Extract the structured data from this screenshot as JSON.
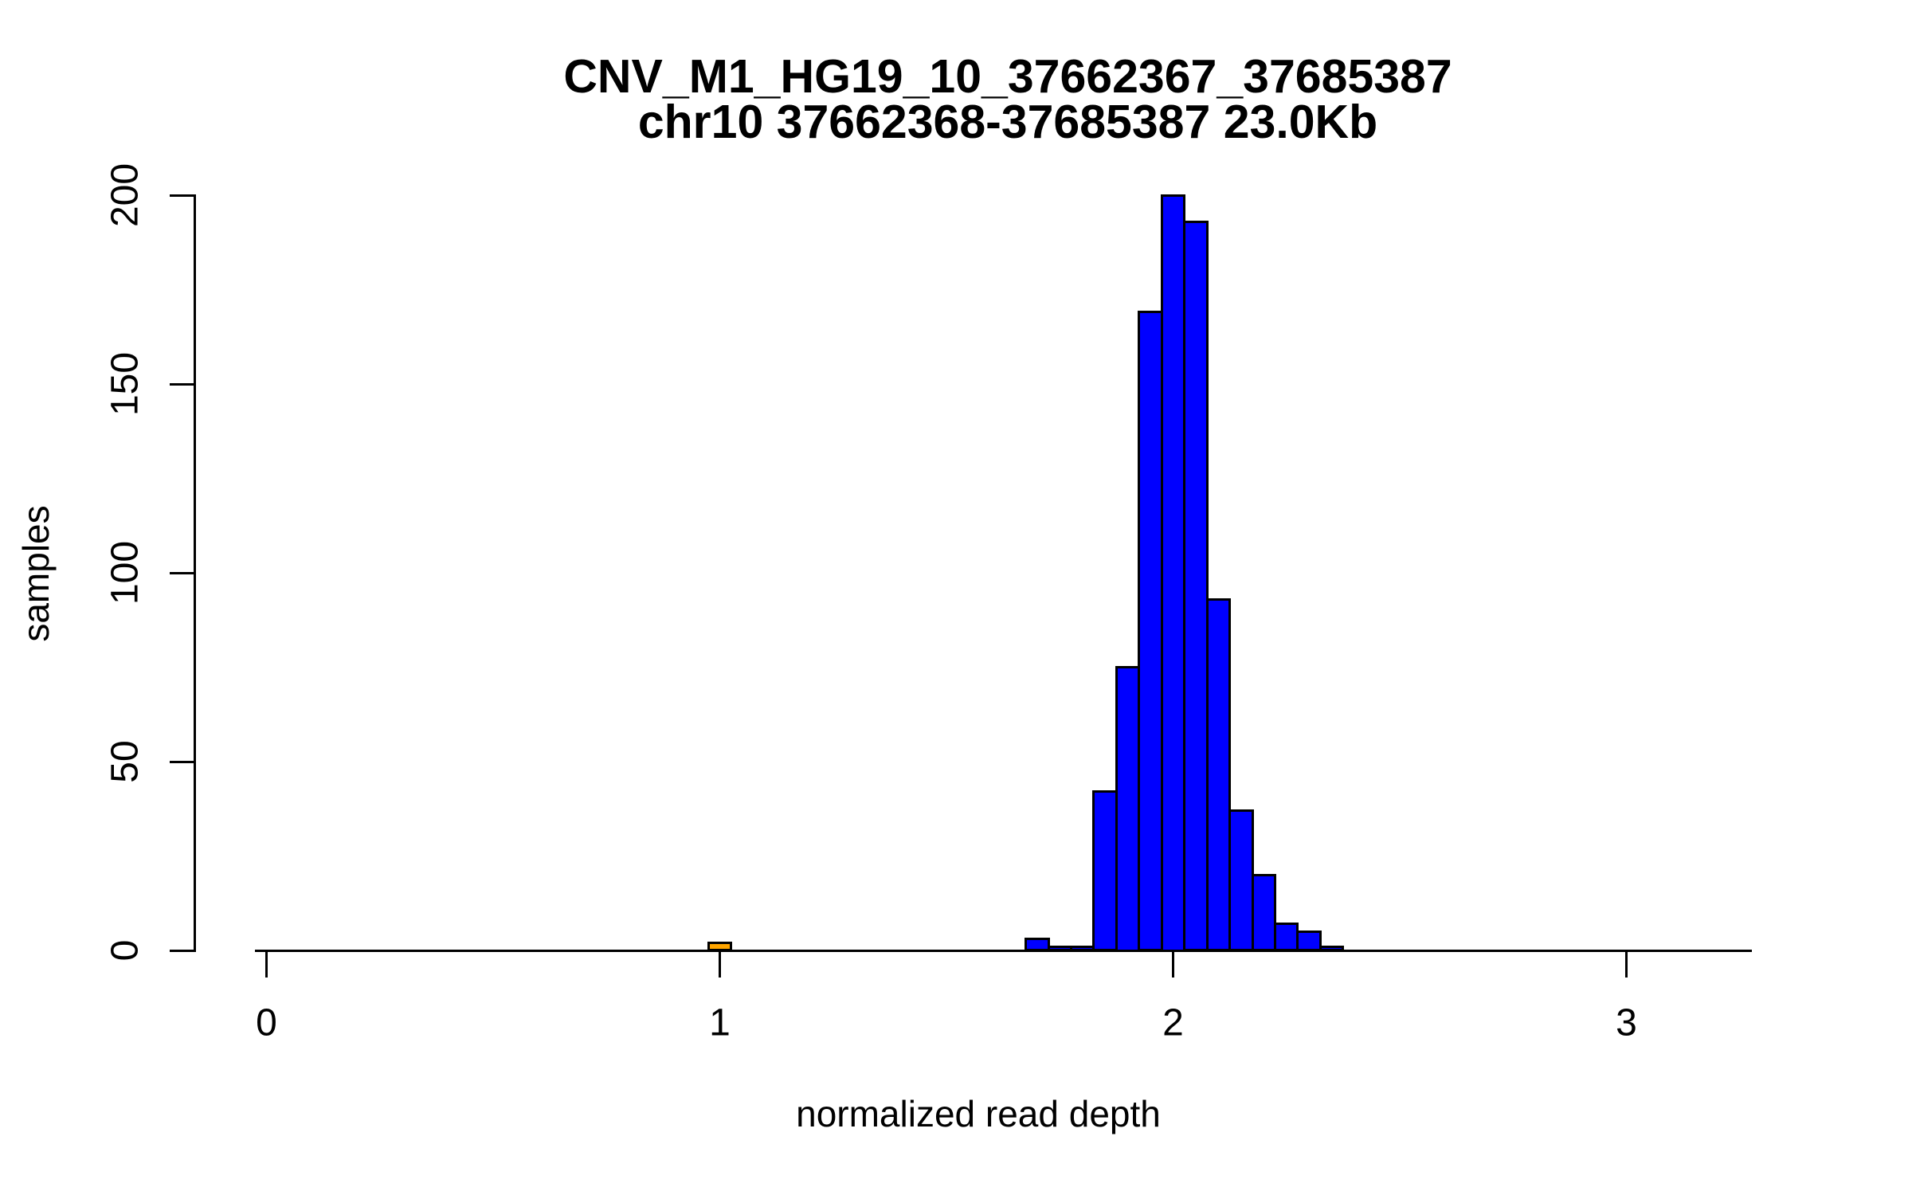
{
  "title": "CNV_M1_HG19_10_37662367_37685387",
  "subtitle": "chr10 37662368-37685387 23.0Kb",
  "chart_data": {
    "type": "bar",
    "subtype": "histogram",
    "title": "CNV_M1_HG19_10_37662367_37685387",
    "subtitle": "chr10 37662368-37685387 23.0Kb",
    "xlabel": "normalized read depth",
    "ylabel": "samples",
    "x_ticks": [
      0,
      1,
      2,
      3
    ],
    "y_ticks": [
      0,
      50,
      100,
      150,
      200
    ],
    "xlim": [
      -0.03,
      3.28
    ],
    "ylim": [
      0,
      200
    ],
    "grid": false,
    "legend": false,
    "bin_width": 0.05,
    "bins": [
      {
        "x": 1.0,
        "count": 2,
        "highlight": true
      },
      {
        "x": 1.7,
        "count": 3,
        "highlight": false
      },
      {
        "x": 1.75,
        "count": 1,
        "highlight": false
      },
      {
        "x": 1.8,
        "count": 1,
        "highlight": false
      },
      {
        "x": 1.85,
        "count": 42,
        "highlight": false
      },
      {
        "x": 1.9,
        "count": 75,
        "highlight": false
      },
      {
        "x": 1.95,
        "count": 169,
        "highlight": false
      },
      {
        "x": 2.0,
        "count": 200,
        "highlight": false
      },
      {
        "x": 2.05,
        "count": 193,
        "highlight": false
      },
      {
        "x": 2.1,
        "count": 93,
        "highlight": false
      },
      {
        "x": 2.15,
        "count": 37,
        "highlight": false
      },
      {
        "x": 2.2,
        "count": 20,
        "highlight": false
      },
      {
        "x": 2.25,
        "count": 7,
        "highlight": false
      },
      {
        "x": 2.3,
        "count": 5,
        "highlight": false
      },
      {
        "x": 2.35,
        "count": 1,
        "highlight": false
      }
    ],
    "colors": {
      "bar_fill": "#0000FF",
      "highlight_fill": "#FFA500",
      "bar_border": "#000000",
      "axis": "#000000",
      "text": "#000000"
    }
  }
}
